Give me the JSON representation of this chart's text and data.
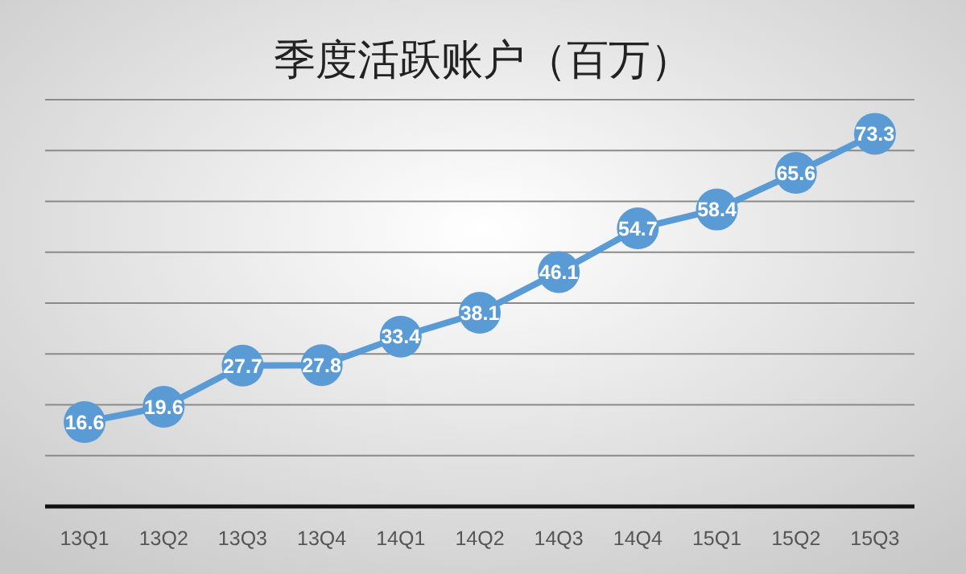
{
  "chart_data": {
    "type": "line",
    "title": "季度活跃账户（百万）",
    "categories": [
      "13Q1",
      "13Q2",
      "13Q3",
      "13Q4",
      "14Q1",
      "14Q2",
      "14Q3",
      "14Q4",
      "15Q1",
      "15Q2",
      "15Q3"
    ],
    "series": [
      {
        "color": "#5b9bd5",
        "values": [
          16.6,
          19.6,
          27.7,
          27.8,
          33.4,
          38.1,
          46.1,
          54.7,
          58.4,
          65.6,
          73.3
        ]
      }
    ],
    "ylim": [
      0,
      80
    ],
    "yticks": [
      {
        "value": 0,
        "label": null
      },
      {
        "value": 10,
        "label": null
      },
      {
        "value": 20,
        "label": null
      },
      {
        "value": 30,
        "label": null
      },
      {
        "value": 40,
        "label": null
      },
      {
        "value": 50,
        "label": null
      },
      {
        "value": 60,
        "label": null
      },
      {
        "value": 70,
        "label": null
      },
      {
        "value": 80,
        "label": null
      }
    ],
    "grid": "y",
    "tick_labels": "x",
    "marker": "circle",
    "line_style": "solid",
    "data_labels": true
  }
}
